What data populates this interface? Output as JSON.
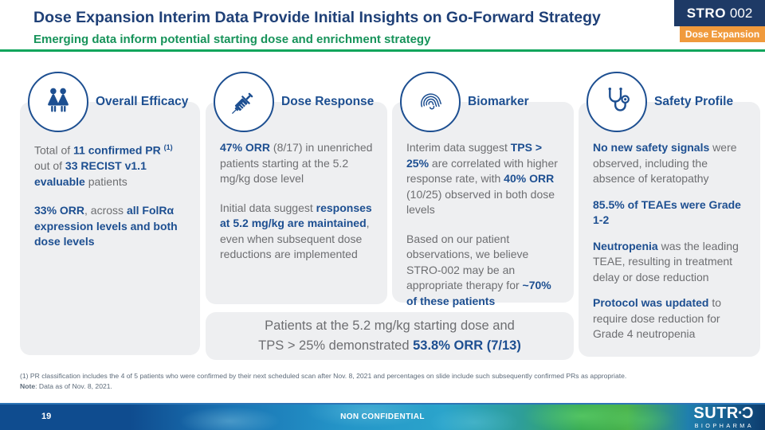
{
  "header": {
    "title": "Dose Expansion Interim Data Provide Initial Insights on Go-Forward Strategy",
    "subtitle": "Emerging data inform potential starting dose and enrichment strategy",
    "badge": {
      "product_bold": "STRO",
      "product_num": "002",
      "tag": "Dose Expansion"
    }
  },
  "columns": [
    {
      "icon": "people-icon",
      "heading": "Overall Efficacy",
      "paragraphs": [
        [
          {
            "t": "Total of "
          },
          {
            "t": "11 confirmed PR",
            "b": true
          },
          {
            "t": " "
          },
          {
            "t": "(1)",
            "b": true,
            "sup": true
          },
          {
            "t": " out of "
          },
          {
            "t": "33 RECIST v1.1 evaluable",
            "b": true
          },
          {
            "t": " patients"
          }
        ],
        [
          {
            "t": "33% ORR",
            "b": true
          },
          {
            "t": ", across "
          },
          {
            "t": "all FolRα expression levels and both dose levels",
            "b": true
          }
        ]
      ]
    },
    {
      "icon": "syringe-icon",
      "heading": "Dose Response",
      "paragraphs": [
        [
          {
            "t": "47% ORR",
            "b": true
          },
          {
            "t": " (8/17) in unenriched patients starting at the 5.2 mg/kg dose level"
          }
        ],
        [
          {
            "t": "Initial data suggest "
          },
          {
            "t": "responses at 5.2 mg/kg are maintained",
            "b": true
          },
          {
            "t": ", even when subsequent dose reductions are implemented"
          }
        ]
      ]
    },
    {
      "icon": "fingerprint-icon",
      "heading": "Biomarker",
      "paragraphs": [
        [
          {
            "t": "Interim data suggest "
          },
          {
            "t": "TPS > 25%",
            "b": true
          },
          {
            "t": " are correlated with higher response rate, with "
          },
          {
            "t": "40% ORR",
            "b": true
          },
          {
            "t": " (10/25) observed in both dose levels"
          }
        ],
        [
          {
            "t": "Based on our patient observations, we believe STRO-002 may be an appropriate therapy for "
          },
          {
            "t": "~70% of these patients",
            "b": true
          }
        ]
      ]
    },
    {
      "icon": "stethoscope-icon",
      "heading": "Safety Profile",
      "paragraphs": [
        [
          {
            "t": "No new safety signals",
            "b": true
          },
          {
            "t": " were observed, including the absence of keratopathy"
          }
        ],
        [
          {
            "t": "85.5% of TEAEs were Grade 1-2",
            "b": true
          }
        ],
        [
          {
            "t": "Neutropenia",
            "b": true
          },
          {
            "t": " was the leading TEAE, resulting in treatment delay or dose reduction"
          }
        ],
        [
          {
            "t": "Protocol was updated",
            "b": true
          },
          {
            "t": " to require dose reduction for Grade 4 neutropenia"
          }
        ]
      ]
    }
  ],
  "callout": {
    "line1": [
      {
        "t": "Patients at the 5.2 mg/kg starting dose and"
      }
    ],
    "line2": [
      {
        "t": "TPS > 25% demonstrated "
      },
      {
        "t": "53.8% ORR (7/13)",
        "b": true
      }
    ]
  },
  "footnotes": {
    "line1": "(1) PR classification includes the 4 of 5 patients who were confirmed by their next scheduled scan after Nov. 8, 2021 and percentages on slide include such subsequently confirmed PRs as appropriate.",
    "line2": [
      {
        "t": "Note",
        "b": true
      },
      {
        "t": ": Data as of Nov. 8, 2021."
      }
    ]
  },
  "footer": {
    "page_number": "19",
    "classification": "NON CONFIDENTIAL",
    "logo": {
      "prefix": "SUTR",
      "dot": "·",
      "o_glyph": "Ɔ",
      "sub": "BIOPHARMA"
    }
  },
  "colors": {
    "title_navy": "#1F4077",
    "accent_blue": "#1D4F91",
    "body_gray": "#6D6E71",
    "subtitle_green": "#17935A",
    "divider_green": "#0FA55C",
    "card_bg": "#EEEFF1",
    "badge_navy": "#1E3A66",
    "badge_orange": "#F09A3C"
  }
}
